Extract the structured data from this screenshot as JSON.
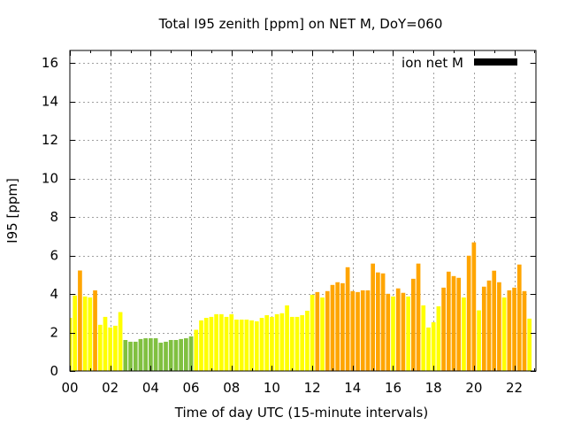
{
  "chart_data": {
    "type": "bar",
    "title": "Total I95 zenith [ppm] on NET M, DoY=060",
    "xlabel": "Time of day UTC (15-minute intervals)",
    "ylabel": "I95 [ppm]",
    "xlim": [
      0,
      23.07
    ],
    "ylim": [
      0,
      16.65
    ],
    "grid": true,
    "x_ticks": [
      0,
      2,
      4,
      6,
      8,
      10,
      12,
      14,
      16,
      18,
      20,
      22
    ],
    "x_tick_labels": [
      "00",
      "02",
      "04",
      "06",
      "08",
      "10",
      "12",
      "14",
      "16",
      "18",
      "20",
      "22"
    ],
    "y_ticks": [
      0,
      2,
      4,
      6,
      8,
      10,
      12,
      14,
      16
    ],
    "y_tick_labels": [
      "0",
      "2",
      "4",
      "6",
      "8",
      "10",
      "12",
      "14",
      "16"
    ],
    "legend": {
      "position": "top-right",
      "label": "ion net M",
      "swatch_color": "#000000"
    },
    "bar_interval_hours": 0.25,
    "colors": {
      "green": "#80c040",
      "yellow": "#ffff00",
      "orange": "#ffa500"
    },
    "series": [
      {
        "name": "ion net M",
        "values": [
          2.76,
          3.92,
          5.22,
          3.87,
          3.82,
          4.19,
          2.4,
          2.81,
          2.26,
          2.35,
          3.06,
          1.61,
          1.52,
          1.52,
          1.66,
          1.7,
          1.7,
          1.7,
          1.47,
          1.52,
          1.61,
          1.61,
          1.66,
          1.7,
          1.8,
          2.14,
          2.63,
          2.76,
          2.81,
          2.95,
          2.95,
          2.81,
          2.95,
          2.67,
          2.67,
          2.67,
          2.63,
          2.58,
          2.76,
          2.9,
          2.81,
          2.95,
          3.0,
          3.41,
          2.81,
          2.81,
          2.9,
          3.13,
          3.96,
          4.1,
          3.82,
          4.15,
          4.47,
          4.61,
          4.56,
          5.39,
          4.15,
          4.1,
          4.19,
          4.19,
          5.58,
          5.12,
          5.07,
          4.01,
          3.87,
          4.29,
          4.06,
          3.87,
          4.79,
          5.58,
          3.41,
          2.26,
          2.53,
          3.36,
          4.33,
          5.16,
          4.93,
          4.84,
          3.82,
          5.99,
          6.68,
          3.15,
          4.38,
          4.7,
          5.21,
          4.61,
          3.82,
          4.19,
          4.33,
          5.53,
          4.15,
          2.72
        ],
        "bar_colors": [
          "yellow",
          "yellow",
          "orange",
          "yellow",
          "yellow",
          "orange",
          "yellow",
          "yellow",
          "yellow",
          "yellow",
          "yellow",
          "green",
          "green",
          "green",
          "green",
          "green",
          "green",
          "green",
          "green",
          "green",
          "green",
          "green",
          "green",
          "green",
          "green",
          "yellow",
          "yellow",
          "yellow",
          "yellow",
          "yellow",
          "yellow",
          "yellow",
          "yellow",
          "yellow",
          "yellow",
          "yellow",
          "yellow",
          "yellow",
          "yellow",
          "yellow",
          "yellow",
          "yellow",
          "yellow",
          "yellow",
          "yellow",
          "yellow",
          "yellow",
          "yellow",
          "yellow",
          "orange",
          "yellow",
          "orange",
          "orange",
          "orange",
          "orange",
          "orange",
          "orange",
          "orange",
          "orange",
          "orange",
          "orange",
          "orange",
          "orange",
          "orange",
          "yellow",
          "orange",
          "orange",
          "yellow",
          "orange",
          "orange",
          "yellow",
          "yellow",
          "yellow",
          "yellow",
          "orange",
          "orange",
          "orange",
          "orange",
          "yellow",
          "orange",
          "orange",
          "yellow",
          "orange",
          "orange",
          "orange",
          "orange",
          "yellow",
          "orange",
          "orange",
          "orange",
          "orange",
          "yellow"
        ]
      }
    ]
  }
}
